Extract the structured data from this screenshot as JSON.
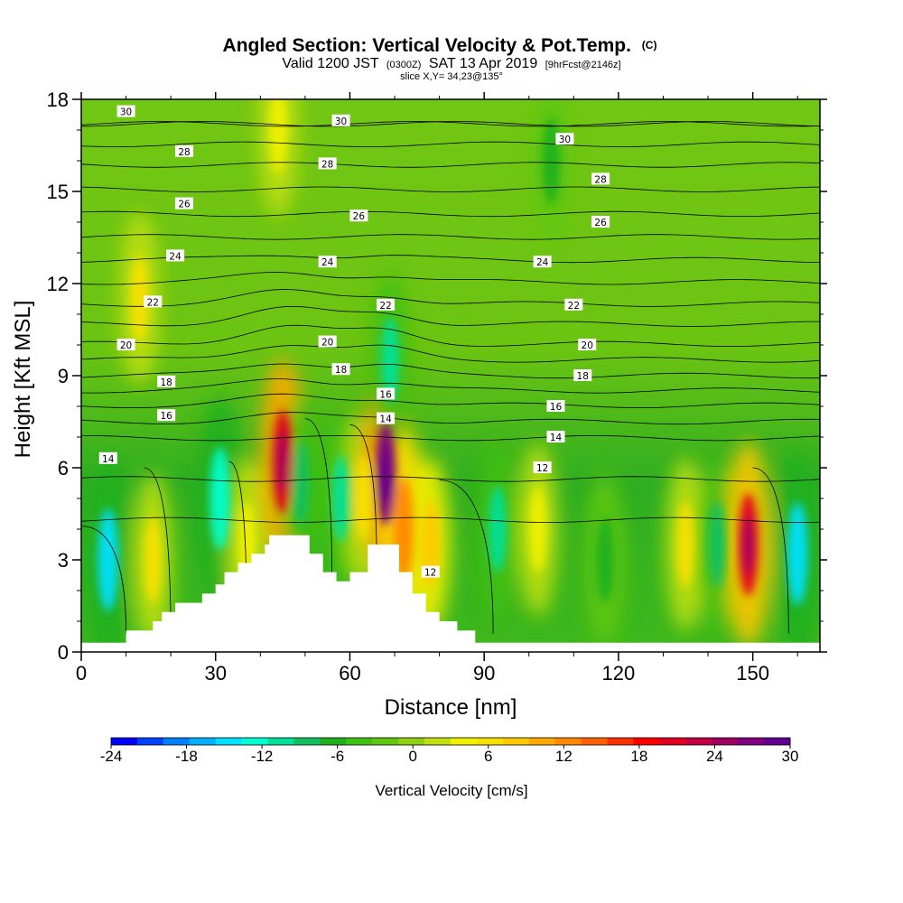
{
  "header": {
    "title_main": "Angled Section: Vertical Velocity & Pot.Temp.",
    "title_mark": "(C)",
    "valid_pre": "Valid 1200 JST",
    "valid_utc": "(0300Z)",
    "valid_date": "SAT 13 Apr 2019",
    "valid_fcst": "[9hrFcst@2146z]",
    "slice": "slice X,Y= 34,23@135°"
  },
  "chart_data": {
    "type": "heatmap",
    "title": "Angled Section: Vertical Velocity & Pot.Temp. (C)",
    "xlabel": "Distance [nm]",
    "ylabel": "Height [Kft MSL]",
    "xlim": [
      0,
      165
    ],
    "ylim": [
      0,
      18
    ],
    "x_ticks": [
      0,
      30,
      60,
      90,
      120,
      150
    ],
    "y_ticks": [
      0,
      3,
      6,
      9,
      12,
      15,
      18
    ],
    "shaded_field": "Vertical Velocity [cm/s]",
    "shaded_range": [
      -24,
      30
    ],
    "updraft_cores": [
      {
        "x": 6,
        "y": 3.0,
        "value": -14
      },
      {
        "x": 16,
        "y": 3.0,
        "value": 6
      },
      {
        "x": 31,
        "y": 5.0,
        "value": -12
      },
      {
        "x": 37,
        "y": 3.5,
        "value": 4
      },
      {
        "x": 45,
        "y": 6.2,
        "value": 21
      },
      {
        "x": 49,
        "y": 5.5,
        "value": -8
      },
      {
        "x": 58,
        "y": 5.0,
        "value": -10
      },
      {
        "x": 63,
        "y": 5.0,
        "value": 6
      },
      {
        "x": 68,
        "y": 5.8,
        "value": 27
      },
      {
        "x": 72,
        "y": 4.0,
        "value": 12
      },
      {
        "x": 69,
        "y": 9.5,
        "value": -10
      },
      {
        "x": 78,
        "y": 3.5,
        "value": 8
      },
      {
        "x": 93,
        "y": 4.0,
        "value": -10
      },
      {
        "x": 102,
        "y": 4.0,
        "value": 4
      },
      {
        "x": 117,
        "y": 3.0,
        "value": -6
      },
      {
        "x": 135,
        "y": 3.5,
        "value": 6
      },
      {
        "x": 142,
        "y": 3.5,
        "value": -8
      },
      {
        "x": 149,
        "y": 3.5,
        "value": 20
      },
      {
        "x": 160,
        "y": 3.2,
        "value": -14
      },
      {
        "x": 13,
        "y": 11.5,
        "value": 6
      },
      {
        "x": 44,
        "y": 17.0,
        "value": 4
      },
      {
        "x": 105,
        "y": 16.0,
        "value": -6
      }
    ],
    "contour_field": "Potential Temperature (C)",
    "contour_labels": [
      {
        "text": "30",
        "x": 10,
        "y": 17.6
      },
      {
        "text": "30",
        "x": 58,
        "y": 17.3
      },
      {
        "text": "30",
        "x": 108,
        "y": 16.7
      },
      {
        "text": "28",
        "x": 23,
        "y": 16.3
      },
      {
        "text": "28",
        "x": 55,
        "y": 15.9
      },
      {
        "text": "28",
        "x": 116,
        "y": 15.4
      },
      {
        "text": "26",
        "x": 23,
        "y": 14.6
      },
      {
        "text": "26",
        "x": 62,
        "y": 14.2
      },
      {
        "text": "26",
        "x": 116,
        "y": 14.0
      },
      {
        "text": "24",
        "x": 21,
        "y": 12.9
      },
      {
        "text": "24",
        "x": 55,
        "y": 12.7
      },
      {
        "text": "24",
        "x": 103,
        "y": 12.7
      },
      {
        "text": "22",
        "x": 16,
        "y": 11.4
      },
      {
        "text": "22",
        "x": 68,
        "y": 11.3
      },
      {
        "text": "22",
        "x": 110,
        "y": 11.3
      },
      {
        "text": "20",
        "x": 10,
        "y": 10.0
      },
      {
        "text": "20",
        "x": 55,
        "y": 10.1
      },
      {
        "text": "20",
        "x": 113,
        "y": 10.0
      },
      {
        "text": "18",
        "x": 19,
        "y": 8.8
      },
      {
        "text": "18",
        "x": 58,
        "y": 9.2
      },
      {
        "text": "18",
        "x": 112,
        "y": 9.0
      },
      {
        "text": "16",
        "x": 19,
        "y": 7.7
      },
      {
        "text": "16",
        "x": 68,
        "y": 8.4
      },
      {
        "text": "16",
        "x": 106,
        "y": 8.0
      },
      {
        "text": "14",
        "x": 6,
        "y": 6.3
      },
      {
        "text": "14",
        "x": 68,
        "y": 7.6
      },
      {
        "text": "14",
        "x": 106,
        "y": 7.0
      },
      {
        "text": "12",
        "x": 103,
        "y": 6.0
      },
      {
        "text": "12",
        "x": 78,
        "y": 2.6
      }
    ],
    "terrain_nm_kft": [
      [
        0,
        0.3
      ],
      [
        10,
        0.3
      ],
      [
        10,
        0.7
      ],
      [
        16,
        0.7
      ],
      [
        16,
        1.0
      ],
      [
        18,
        1.0
      ],
      [
        18,
        1.3
      ],
      [
        21,
        1.3
      ],
      [
        21,
        1.6
      ],
      [
        27,
        1.6
      ],
      [
        27,
        1.9
      ],
      [
        30,
        1.9
      ],
      [
        30,
        2.2
      ],
      [
        32,
        2.2
      ],
      [
        32,
        2.6
      ],
      [
        35,
        2.6
      ],
      [
        35,
        2.9
      ],
      [
        38,
        2.9
      ],
      [
        38,
        3.2
      ],
      [
        41,
        3.2
      ],
      [
        41,
        3.5
      ],
      [
        42,
        3.5
      ],
      [
        42,
        3.8
      ],
      [
        51,
        3.8
      ],
      [
        51,
        3.2
      ],
      [
        54,
        3.2
      ],
      [
        54,
        2.6
      ],
      [
        57,
        2.6
      ],
      [
        57,
        2.3
      ],
      [
        60,
        2.3
      ],
      [
        60,
        2.6
      ],
      [
        64,
        2.6
      ],
      [
        64,
        3.5
      ],
      [
        71,
        3.5
      ],
      [
        71,
        2.6
      ],
      [
        74,
        2.6
      ],
      [
        74,
        1.9
      ],
      [
        77,
        1.9
      ],
      [
        77,
        1.3
      ],
      [
        80,
        1.3
      ],
      [
        80,
        1.0
      ],
      [
        84,
        1.0
      ],
      [
        84,
        0.7
      ],
      [
        88,
        0.7
      ],
      [
        88,
        0.3
      ],
      [
        165,
        0.3
      ]
    ]
  },
  "colorbar": {
    "ticks": [
      "-24",
      "-18",
      "-12",
      "-6",
      "0",
      "6",
      "12",
      "18",
      "24",
      "30"
    ],
    "label": "Vertical Velocity [cm/s]",
    "colors": [
      "#0000ff",
      "#0040ff",
      "#0080ff",
      "#00b0ff",
      "#00e0ff",
      "#00ffd0",
      "#00e09a",
      "#10c060",
      "#20b020",
      "#40c010",
      "#60c810",
      "#90d010",
      "#c0e010",
      "#f0f000",
      "#f8e000",
      "#ffc800",
      "#ffa800",
      "#ff8800",
      "#ff6000",
      "#ff3000",
      "#ff0000",
      "#e00020",
      "#c00040",
      "#a00060",
      "#800080",
      "#600090"
    ]
  }
}
